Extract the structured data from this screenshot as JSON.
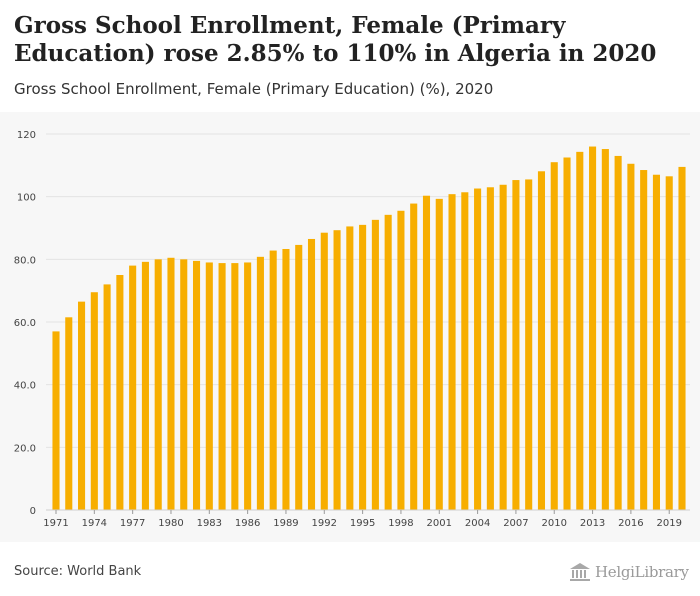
{
  "header": {
    "title": "Gross School Enrollment, Female (Primary Education) rose 2.85% to 110% in Algeria in 2020",
    "subtitle": "Gross School Enrollment, Female (Primary Education) (%), 2020"
  },
  "footer": {
    "source": "Source: World Bank",
    "brand_name": "HelgiLibrary"
  },
  "colors": {
    "bar": "#f7ae00",
    "grid": "#e3e3e3",
    "axis_text": "#444444",
    "background_plot": "#f7f7f7"
  },
  "chart_data": {
    "type": "bar",
    "title": "Gross School Enrollment, Female (Primary Education) (%), 2020",
    "xlabel": "",
    "ylabel": "",
    "ylim": [
      0,
      120
    ],
    "yticks": [
      "0",
      "20.0",
      "40.0",
      "60.0",
      "80.0",
      "100",
      "120"
    ],
    "grid": true,
    "categories": [
      1971,
      1972,
      1973,
      1974,
      1975,
      1976,
      1977,
      1978,
      1979,
      1980,
      1981,
      1982,
      1983,
      1984,
      1985,
      1986,
      1987,
      1988,
      1989,
      1990,
      1991,
      1992,
      1993,
      1994,
      1995,
      1996,
      1997,
      1998,
      1999,
      2000,
      2001,
      2002,
      2003,
      2004,
      2005,
      2006,
      2007,
      2008,
      2009,
      2010,
      2011,
      2012,
      2013,
      2014,
      2015,
      2016,
      2017,
      2018,
      2019,
      2020
    ],
    "xtick_labels": [
      "1971",
      "1974",
      "1977",
      "1980",
      "1983",
      "1986",
      "1989",
      "1992",
      "1995",
      "1998",
      "2001",
      "2004",
      "2007",
      "2010",
      "2013",
      "2016",
      "2019"
    ],
    "values": [
      57.0,
      61.5,
      66.5,
      69.5,
      72.0,
      75.0,
      78.0,
      79.2,
      80.0,
      80.5,
      80.0,
      79.5,
      79.0,
      78.8,
      78.8,
      79.0,
      80.8,
      82.8,
      83.3,
      84.6,
      86.5,
      88.5,
      89.3,
      90.5,
      91.0,
      92.6,
      94.2,
      95.5,
      97.8,
      100.3,
      99.3,
      100.8,
      101.4,
      102.6,
      103.0,
      103.8,
      105.3,
      105.5,
      108.1,
      111.0,
      112.5,
      114.3,
      116.0,
      115.2,
      113.0,
      110.5,
      108.5,
      107.0,
      106.5,
      109.5
    ]
  }
}
